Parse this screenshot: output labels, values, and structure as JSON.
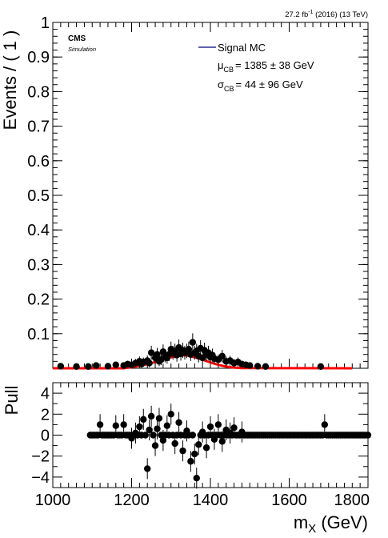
{
  "header": {
    "lumi_label": "27.2 fb",
    "lumi_sup": "-1",
    "lumi_suffix": " (2016) (13 TeV)"
  },
  "cms_label": "CMS",
  "sim_label": "Simulation",
  "legend": {
    "signal_label": "Signal MC",
    "mu_sym": "μ",
    "mu_sub": "CB",
    "mu_text": "= 1385 ± 38 GeV",
    "sigma_sym": "σ",
    "sigma_sub": "CB",
    "sigma_text": "= 44 ± 96 GeV"
  },
  "colors": {
    "fit_curve": "#ff0000",
    "legend_line": "#000080",
    "points": "#000000"
  },
  "chart_data": [
    {
      "type": "scatter",
      "name": "main",
      "ylabel": "Events / ( 1 )",
      "xlim": [
        1000,
        1800
      ],
      "ylim": [
        0,
        1
      ],
      "yticks": [
        0.1,
        0.2,
        0.3,
        0.4,
        0.5,
        0.6,
        0.7,
        0.8,
        0.9,
        1
      ],
      "ytick_labels": [
        "0.1",
        "0.2",
        "0.3",
        "0.4",
        "0.5",
        "0.6",
        "0.7",
        "0.8",
        "0.9",
        "1"
      ],
      "series": [
        {
          "type": "scatter",
          "x": [
            1020,
            1060,
            1090,
            1110,
            1140,
            1160,
            1180,
            1190,
            1200,
            1210,
            1220,
            1225,
            1230,
            1240,
            1245,
            1250,
            1260,
            1265,
            1270,
            1275,
            1280,
            1285,
            1290,
            1295,
            1300,
            1305,
            1310,
            1315,
            1320,
            1325,
            1330,
            1335,
            1340,
            1345,
            1350,
            1355,
            1360,
            1365,
            1370,
            1375,
            1380,
            1385,
            1390,
            1395,
            1400,
            1405,
            1410,
            1420,
            1430,
            1440,
            1450,
            1460,
            1470,
            1480,
            1490,
            1500,
            1520,
            1540,
            1680
          ],
          "y": [
            0.006,
            0.005,
            0.005,
            0.008,
            0.006,
            0.01,
            0.008,
            0.012,
            0.01,
            0.015,
            0.02,
            0.012,
            0.018,
            0.022,
            0.015,
            0.045,
            0.03,
            0.04,
            0.02,
            0.025,
            0.048,
            0.035,
            0.03,
            0.04,
            0.055,
            0.045,
            0.05,
            0.038,
            0.06,
            0.042,
            0.052,
            0.045,
            0.05,
            0.055,
            0.04,
            0.075,
            0.045,
            0.05,
            0.035,
            0.058,
            0.03,
            0.052,
            0.04,
            0.045,
            0.032,
            0.038,
            0.028,
            0.025,
            0.035,
            0.02,
            0.022,
            0.015,
            0.018,
            0.012,
            0.01,
            0.008,
            0.006,
            0.005,
            0.005
          ],
          "yerr": [
            0.005,
            0.005,
            0.005,
            0.007,
            0.006,
            0.009,
            0.008,
            0.01,
            0.009,
            0.012,
            0.014,
            0.01,
            0.013,
            0.015,
            0.012,
            0.02,
            0.017,
            0.019,
            0.014,
            0.016,
            0.021,
            0.018,
            0.017,
            0.019,
            0.022,
            0.02,
            0.021,
            0.019,
            0.023,
            0.02,
            0.022,
            0.02,
            0.021,
            0.022,
            0.019,
            0.026,
            0.02,
            0.021,
            0.018,
            0.023,
            0.017,
            0.022,
            0.019,
            0.02,
            0.017,
            0.019,
            0.016,
            0.015,
            0.018,
            0.014,
            0.014,
            0.012,
            0.013,
            0.01,
            0.009,
            0.008,
            0.006,
            0.005,
            0.005
          ]
        },
        {
          "type": "line",
          "x": [
            1000,
            1180,
            1200,
            1220,
            1240,
            1260,
            1280,
            1300,
            1320,
            1330,
            1340,
            1360,
            1380,
            1400,
            1420,
            1440,
            1460,
            1480,
            1760
          ],
          "y": [
            0,
            0,
            0.003,
            0.007,
            0.012,
            0.018,
            0.026,
            0.032,
            0.037,
            0.038,
            0.037,
            0.032,
            0.025,
            0.017,
            0.01,
            0.005,
            0.002,
            0.0005,
            0
          ]
        }
      ]
    },
    {
      "type": "scatter",
      "name": "pull",
      "ylabel": "Pull",
      "xlabel": "m",
      "xlabel_sub": "X",
      "xlabel_unit": " (GeV)",
      "xlim": [
        1000,
        1800
      ],
      "ylim": [
        -5,
        5
      ],
      "xticks": [
        1000,
        1200,
        1400,
        1600,
        1800
      ],
      "xtick_labels": [
        "1000",
        "1200",
        "1400",
        "1600",
        "1800"
      ],
      "yticks": [
        -4,
        -2,
        0,
        2,
        4
      ],
      "ytick_labels": [
        "−4",
        "−2",
        "0",
        "2",
        "4"
      ],
      "series": [
        {
          "x": [
            1120,
            1160,
            1180,
            1200,
            1210,
            1220,
            1230,
            1240,
            1245,
            1250,
            1260,
            1265,
            1270,
            1280,
            1290,
            1300,
            1310,
            1320,
            1330,
            1340,
            1350,
            1360,
            1365,
            1370,
            1380,
            1390,
            1400,
            1410,
            1420,
            1430,
            1440,
            1450,
            1460,
            1480,
            1690
          ],
          "y": [
            1,
            0.9,
            1,
            -0.3,
            0.2,
            0.8,
            1.5,
            -3.2,
            0.5,
            1.8,
            -1,
            0.6,
            1.6,
            -0.5,
            0.9,
            2,
            -0.8,
            1.2,
            -1.5,
            0.4,
            -2.5,
            -1.8,
            -4.1,
            -0.9,
            0.3,
            -1.2,
            0.8,
            -0.4,
            1,
            -0.6,
            0.5,
            0.2,
            0.7,
            0.3,
            1
          ],
          "yerr": [
            1,
            1,
            1,
            1,
            1,
            1,
            1,
            1,
            1,
            1,
            1,
            1,
            1,
            1,
            1,
            1,
            1,
            1,
            1,
            1,
            1,
            1,
            1,
            1,
            1,
            1,
            1,
            1,
            1,
            1,
            1,
            1,
            1,
            1,
            1
          ]
        }
      ]
    }
  ]
}
